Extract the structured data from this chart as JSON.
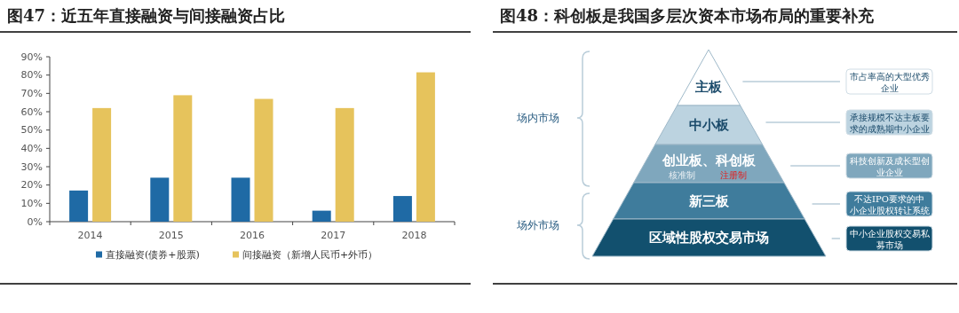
{
  "chart_data": [
    {
      "type": "bar",
      "title": "图47：近五年直接融资与间接融资占比",
      "categories": [
        "2014",
        "2015",
        "2016",
        "2017",
        "2018"
      ],
      "series": [
        {
          "name": "直接融资(债券+股票)",
          "color": "#1f6aa5",
          "values": [
            17,
            24,
            24,
            6,
            14
          ]
        },
        {
          "name": "间接融资（新增人民币+外币）",
          "color": "#e6c35c",
          "values": [
            62,
            69,
            67,
            62,
            81.5
          ]
        }
      ],
      "ylim": [
        0,
        90
      ],
      "yticks": [
        {
          "value": 0,
          "label": "0%"
        },
        {
          "value": 10,
          "label": "10%"
        },
        {
          "value": 20,
          "label": "20%"
        },
        {
          "value": 30,
          "label": "30%"
        },
        {
          "value": 40,
          "label": "40%"
        },
        {
          "value": 50,
          "label": "50%"
        },
        {
          "value": 60,
          "label": "60%"
        },
        {
          "value": 70,
          "label": "70%"
        },
        {
          "value": 80,
          "label": "80%"
        },
        {
          "value": 90,
          "label": "90%"
        }
      ],
      "legend": "bottom"
    },
    {
      "type": "other",
      "title": "图48：科创板是我国多层次资本市场布局的重要补充",
      "categories": [
        "主板",
        "中小板",
        "创业板、科创板",
        "新三板",
        "区域性股权交易市场"
      ],
      "colors": [
        "#ffffff",
        "#bcd3e0",
        "#7fa7bd",
        "#3f7c9c",
        "#12506e"
      ],
      "annotations": [
        "场内市场",
        "场外市场",
        "市占率高的大型优秀企业",
        "承接规模不达主板要求的成熟期中小企业",
        "科技创新及成长型创业企业",
        "不达IPO要求的中小企业股权转让系统",
        "中小企业股权交易私募市场",
        "核准制",
        "注册制"
      ]
    }
  ]
}
